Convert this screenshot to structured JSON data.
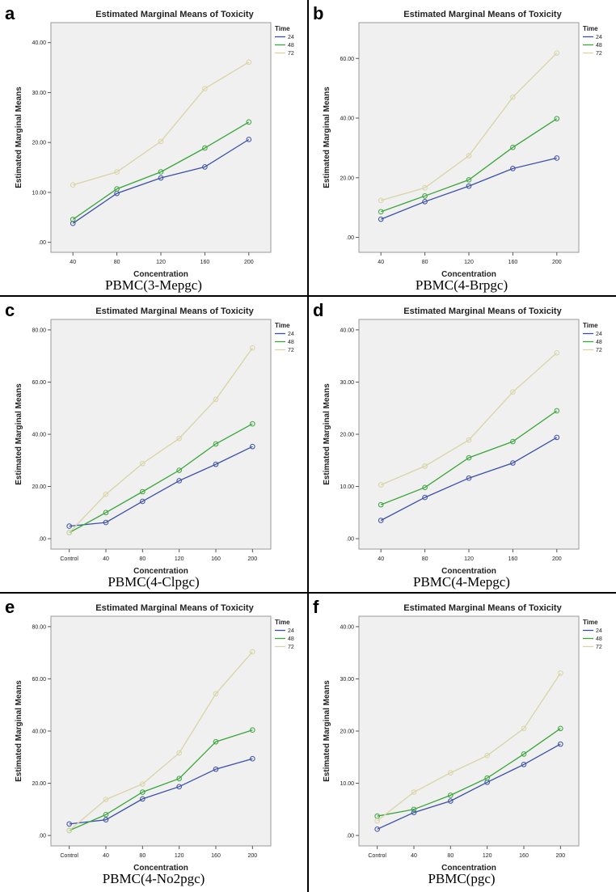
{
  "chart_data": [
    {
      "panel": "a",
      "type": "line",
      "title": "Estimated Marginal Means of Toxicity",
      "xlabel": "Concentration",
      "ylabel": "Estimated Marginal Means",
      "caption": "PBMC(3-Mepgc)",
      "legend_title": "Time",
      "categories": [
        "40",
        "80",
        "120",
        "160",
        "200"
      ],
      "ylim": [
        -2,
        44
      ],
      "yticks": [
        0,
        10,
        20,
        30,
        40
      ],
      "ytick_labels": [
        ".00",
        "10.00",
        "20.00",
        "30.00",
        "40.00"
      ],
      "series": [
        {
          "name": "24",
          "color": "#3b4fa8",
          "values": [
            3.8,
            9.8,
            12.9,
            15.1,
            20.6
          ]
        },
        {
          "name": "48",
          "color": "#3aa53a",
          "values": [
            4.6,
            10.7,
            14.1,
            18.9,
            24.1
          ]
        },
        {
          "name": "72",
          "color": "#d8d4a4",
          "values": [
            11.5,
            14.1,
            20.2,
            30.8,
            36.1
          ]
        }
      ]
    },
    {
      "panel": "b",
      "type": "line",
      "title": "Estimated Marginal Means of Toxicity",
      "xlabel": "Concentration",
      "ylabel": "Estimated Marginal Means",
      "caption": "PBMC(4-Brpgc)",
      "legend_title": "Time",
      "categories": [
        "40",
        "80",
        "120",
        "160",
        "200"
      ],
      "ylim": [
        -5,
        72
      ],
      "yticks": [
        0,
        20,
        40,
        60
      ],
      "ytick_labels": [
        ".00",
        "20.00",
        "40.00",
        "60.00"
      ],
      "series": [
        {
          "name": "24",
          "color": "#3b4fa8",
          "values": [
            6.1,
            12.0,
            17.2,
            23.1,
            26.6
          ]
        },
        {
          "name": "48",
          "color": "#3aa53a",
          "values": [
            8.6,
            13.9,
            19.3,
            30.2,
            39.8
          ]
        },
        {
          "name": "72",
          "color": "#d8d4a4",
          "values": [
            12.4,
            16.6,
            27.4,
            47.0,
            61.8
          ]
        }
      ]
    },
    {
      "panel": "c",
      "type": "line",
      "title": "Estimated Marginal Means of Toxicity",
      "xlabel": "Concentration",
      "ylabel": "Estimated Marginal Means",
      "caption": "PBMC(4-Clpgc)",
      "legend_title": "Time",
      "categories": [
        "Control",
        "40",
        "80",
        "120",
        "160",
        "200"
      ],
      "ylim": [
        -4,
        84
      ],
      "yticks": [
        0,
        20,
        40,
        60,
        80
      ],
      "ytick_labels": [
        ".00",
        "20.00",
        "40.00",
        "60.00",
        "80.00"
      ],
      "series": [
        {
          "name": "24",
          "color": "#3b4fa8",
          "values": [
            4.8,
            6.2,
            14.3,
            22.2,
            28.5,
            35.3
          ]
        },
        {
          "name": "48",
          "color": "#3aa53a",
          "values": [
            2.3,
            10.0,
            18.0,
            26.2,
            36.3,
            44.0
          ]
        },
        {
          "name": "72",
          "color": "#d8d4a4",
          "values": [
            2.3,
            17.0,
            28.8,
            38.4,
            53.4,
            73.1
          ]
        }
      ]
    },
    {
      "panel": "d",
      "type": "line",
      "title": "Estimated Marginal Means of Toxicity",
      "xlabel": "Concentration",
      "ylabel": "Estimated Marginal Means",
      "caption": "PBMC(4-Mepgc)",
      "legend_title": "Time",
      "categories": [
        "40",
        "80",
        "120",
        "160",
        "200"
      ],
      "ylim": [
        -2,
        42
      ],
      "yticks": [
        0,
        10,
        20,
        30,
        40
      ],
      "ytick_labels": [
        ".00",
        "10.00",
        "20.00",
        "30.00",
        "40.00"
      ],
      "series": [
        {
          "name": "24",
          "color": "#3b4fa8",
          "values": [
            3.5,
            7.9,
            11.6,
            14.5,
            19.4
          ]
        },
        {
          "name": "48",
          "color": "#3aa53a",
          "values": [
            6.5,
            9.8,
            15.5,
            18.6,
            24.5
          ]
        },
        {
          "name": "72",
          "color": "#d8d4a4",
          "values": [
            10.3,
            13.9,
            18.9,
            28.1,
            35.6
          ]
        }
      ]
    },
    {
      "panel": "e",
      "type": "line",
      "title": "Estimated Marginal Means of Toxicity",
      "xlabel": "Concentration",
      "ylabel": "Estimated Marginal Means",
      "caption": "PBMC(4-No2pgc)",
      "legend_title": "Time",
      "categories": [
        "Control",
        "40",
        "80",
        "120",
        "160",
        "200"
      ],
      "ylim": [
        -4,
        84
      ],
      "yticks": [
        0,
        20,
        40,
        60,
        80
      ],
      "ytick_labels": [
        ".00",
        "20.00",
        "40.00",
        "60.00",
        "80.00"
      ],
      "series": [
        {
          "name": "24",
          "color": "#3b4fa8",
          "values": [
            4.4,
            6.0,
            14.0,
            18.7,
            25.4,
            29.4
          ]
        },
        {
          "name": "48",
          "color": "#3aa53a",
          "values": [
            1.9,
            8.0,
            16.6,
            21.8,
            35.9,
            40.4
          ]
        },
        {
          "name": "72",
          "color": "#d8d4a4",
          "values": [
            1.9,
            13.8,
            19.7,
            31.6,
            54.3,
            70.4
          ]
        }
      ]
    },
    {
      "panel": "f",
      "type": "line",
      "title": "Estimated Marginal Means of Toxicity",
      "xlabel": "Concentration",
      "ylabel": "Estimated Marginal Means",
      "caption": "PBMC(pgc)",
      "legend_title": "Time",
      "categories": [
        "Control",
        "40",
        "80",
        "120",
        "160",
        "200"
      ],
      "ylim": [
        -2,
        42
      ],
      "yticks": [
        0,
        10,
        20,
        30,
        40
      ],
      "ytick_labels": [
        ".00",
        "10.00",
        "20.00",
        "30.00",
        "40.00"
      ],
      "series": [
        {
          "name": "24",
          "color": "#3b4fa8",
          "values": [
            1.2,
            4.4,
            6.6,
            10.2,
            13.6,
            17.5
          ]
        },
        {
          "name": "48",
          "color": "#3aa53a",
          "values": [
            3.7,
            5.0,
            7.7,
            11.0,
            15.6,
            20.5
          ]
        },
        {
          "name": "72",
          "color": "#d8d4a4",
          "values": [
            2.8,
            8.3,
            12.0,
            15.3,
            20.5,
            31.1
          ]
        }
      ]
    }
  ]
}
